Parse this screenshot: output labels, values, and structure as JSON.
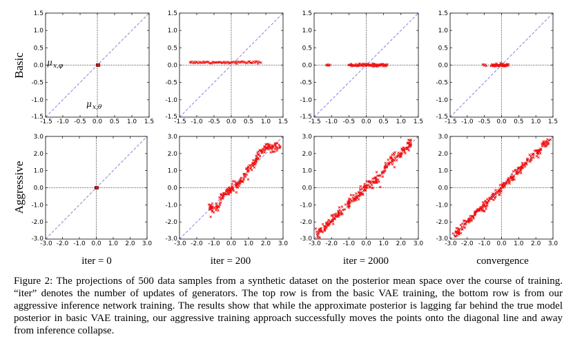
{
  "figure": {
    "row_labels": [
      "Basic",
      "Aggressive"
    ],
    "column_labels": [
      "iter = 0",
      "iter = 200",
      "iter = 2000",
      "convergence"
    ],
    "annotation_y": "μx,φ",
    "annotation_x": "μx,θ",
    "caption": "Figure 2: The projections of 500 data samples from a synthetic dataset on the posterior mean space over the course of training. “iter” denotes the number of updates of generators. The top row is from the basic VAE training, the bottom row is from our aggressive inference network training. The results show that while the approximate posterior is lagging far behind the true model posterior in basic VAE training, our aggressive training approach successfully moves the points onto the diagonal line and away from inference collapse.",
    "colors": {
      "points": "#ee1111",
      "diagonal": "#7f6fd8",
      "axes": "#000000"
    }
  },
  "chart_data": [
    {
      "type": "scatter",
      "row": "Basic",
      "title": "iter = 0",
      "xlim": [
        -1.5,
        1.5
      ],
      "ylim": [
        -1.5,
        1.5
      ],
      "xticks": [
        "-1.5",
        "-1.0",
        "-0.5",
        "0.0",
        "0.5",
        "1.0",
        "1.5"
      ],
      "yticks": [
        "-1.5",
        "-1.0",
        "-0.5",
        "0.0",
        "0.5",
        "1.0",
        "1.5"
      ],
      "xlabel": "μx,θ",
      "ylabel": "μx,φ",
      "diagonal": true,
      "clusters": [
        {
          "x": [
            0.0,
            0.04
          ],
          "y": 0.0,
          "noise_y": 0.0,
          "n": 6,
          "marker": "square"
        }
      ]
    },
    {
      "type": "scatter",
      "row": "Basic",
      "title": "iter = 200",
      "xlim": [
        -1.5,
        1.5
      ],
      "ylim": [
        -1.5,
        1.5
      ],
      "xticks": [
        "-1.5",
        "-1.0",
        "-0.5",
        "0.0",
        "0.5",
        "1.0",
        "1.5"
      ],
      "yticks": [
        "-1.5",
        "-1.0",
        "-0.5",
        "0.0",
        "0.5",
        "1.0",
        "1.5"
      ],
      "diagonal": true,
      "clusters": [
        {
          "x": [
            -1.2,
            0.85
          ],
          "y": 0.08,
          "noise_y": 0.015,
          "n": 70,
          "marker": "x"
        }
      ]
    },
    {
      "type": "scatter",
      "row": "Basic",
      "title": "iter = 2000",
      "xlim": [
        -1.5,
        1.5
      ],
      "ylim": [
        -1.5,
        1.5
      ],
      "xticks": [
        "-1.5",
        "-1.0",
        "-0.5",
        "0.0",
        "0.5",
        "1.0",
        "1.5"
      ],
      "yticks": [
        "-1.5",
        "-1.0",
        "-0.5",
        "0.0",
        "0.5",
        "1.0",
        "1.5"
      ],
      "diagonal": true,
      "clusters": [
        {
          "x": [
            -1.15,
            -1.05
          ],
          "y": 0.0,
          "noise_y": 0.01,
          "n": 6,
          "marker": "x"
        },
        {
          "x": [
            -0.5,
            0.6
          ],
          "y": 0.0,
          "noise_y": 0.02,
          "n": 80,
          "marker": "x"
        }
      ]
    },
    {
      "type": "scatter",
      "row": "Basic",
      "title": "convergence",
      "xlim": [
        -1.5,
        1.5
      ],
      "ylim": [
        -1.5,
        1.5
      ],
      "xticks": [
        "-1.5",
        "-1.0",
        "-0.5",
        "0.0",
        "0.5",
        "1.0",
        "1.5"
      ],
      "yticks": [
        "-1.5",
        "-1.0",
        "-0.5",
        "0.0",
        "0.5",
        "1.0",
        "1.5"
      ],
      "diagonal": true,
      "clusters": [
        {
          "x": [
            -0.55,
            -0.45
          ],
          "y": 0.0,
          "noise_y": 0.01,
          "n": 5,
          "marker": "x"
        },
        {
          "x": [
            -0.3,
            0.2
          ],
          "y": 0.0,
          "noise_y": 0.02,
          "n": 60,
          "marker": "x"
        }
      ]
    },
    {
      "type": "scatter",
      "row": "Aggressive",
      "title": "iter = 0",
      "xlim": [
        -3.0,
        3.0
      ],
      "ylim": [
        -3.0,
        3.0
      ],
      "xticks": [
        "-3.0",
        "-2.0",
        "-1.0",
        "0.0",
        "1.0",
        "2.0",
        "3.0"
      ],
      "yticks": [
        "-3.0",
        "-2.0",
        "-1.0",
        "0.0",
        "1.0",
        "2.0",
        "3.0"
      ],
      "diagonal": true,
      "clusters": [
        {
          "x": [
            0.0,
            0.05
          ],
          "y": 0.0,
          "noise_y": 0.0,
          "n": 6,
          "marker": "square"
        }
      ]
    },
    {
      "type": "scatter",
      "row": "Aggressive",
      "title": "iter = 200",
      "xlim": [
        -3.0,
        3.0
      ],
      "ylim": [
        -3.0,
        3.0
      ],
      "xticks": [
        "-3.0",
        "-2.0",
        "-1.0",
        "0.0",
        "1.0",
        "2.0",
        "3.0"
      ],
      "yticks": [
        "-3.0",
        "-2.0",
        "-1.0",
        "0.0",
        "1.0",
        "2.0",
        "3.0"
      ],
      "diagonal": true,
      "curve": [
        [
          -1.3,
          -1.25
        ],
        [
          -0.8,
          -1.2
        ],
        [
          -0.6,
          -0.6
        ],
        [
          -0.3,
          -0.3
        ],
        [
          0.2,
          0.0
        ],
        [
          0.6,
          0.4
        ],
        [
          1.2,
          1.3
        ],
        [
          1.6,
          2.0
        ],
        [
          2.0,
          2.3
        ],
        [
          2.9,
          2.45
        ]
      ],
      "curve_noise": 0.13,
      "n": 220,
      "marker": "x"
    },
    {
      "type": "scatter",
      "row": "Aggressive",
      "title": "iter = 2000",
      "xlim": [
        -3.0,
        3.0
      ],
      "ylim": [
        -3.0,
        3.0
      ],
      "xticks": [
        "-3.0",
        "-2.0",
        "-1.0",
        "0.0",
        "1.0",
        "2.0",
        "3.0"
      ],
      "yticks": [
        "-3.0",
        "-2.0",
        "-1.0",
        "0.0",
        "1.0",
        "2.0",
        "3.0"
      ],
      "diagonal": true,
      "curve": [
        [
          -2.9,
          -2.8
        ],
        [
          -1.5,
          -1.45
        ],
        [
          0.0,
          0.05
        ],
        [
          0.8,
          0.6
        ],
        [
          1.2,
          1.3
        ],
        [
          2.0,
          2.05
        ],
        [
          2.6,
          2.6
        ]
      ],
      "curve_noise": 0.16,
      "n": 280,
      "marker": "x"
    },
    {
      "type": "scatter",
      "row": "Aggressive",
      "title": "convergence",
      "xlim": [
        -3.0,
        3.0
      ],
      "ylim": [
        -3.0,
        3.0
      ],
      "xticks": [
        "-3.0",
        "-2.0",
        "-1.0",
        "0.0",
        "1.0",
        "2.0",
        "3.0"
      ],
      "yticks": [
        "-3.0",
        "-2.0",
        "-1.0",
        "0.0",
        "1.0",
        "2.0",
        "3.0"
      ],
      "diagonal": true,
      "curve": [
        [
          -2.8,
          -2.8
        ],
        [
          0.0,
          0.0
        ],
        [
          2.8,
          2.8
        ]
      ],
      "curve_noise": 0.12,
      "n": 280,
      "marker": "x"
    }
  ]
}
